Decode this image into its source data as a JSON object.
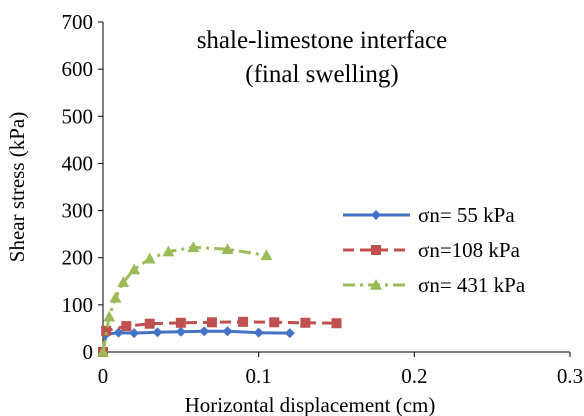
{
  "chart_data": {
    "type": "scatter",
    "title_lines": [
      "shale-limestone interface",
      "(final swelling)"
    ],
    "xlabel": "Horizontal displacement (cm)",
    "ylabel": "Shear stress (kPa)",
    "xlim": [
      0,
      0.3
    ],
    "ylim": [
      0,
      700
    ],
    "x_ticks": [
      "0",
      "0.1",
      "0.2",
      "0.3"
    ],
    "y_ticks": [
      "0",
      "100",
      "200",
      "300",
      "400",
      "500",
      "600",
      "700"
    ],
    "grid": false,
    "legend_position": "right",
    "series": [
      {
        "name": "σn= 55 kPa",
        "color": "#4472C4",
        "marker": "diamond",
        "line_style": "solid",
        "x": [
          0,
          0.002,
          0.01,
          0.02,
          0.035,
          0.05,
          0.065,
          0.08,
          0.1,
          0.12
        ],
        "y": [
          0,
          38,
          41,
          40,
          42,
          43,
          44,
          44,
          41,
          40
        ]
      },
      {
        "name": "σn=108 kPa",
        "color": "#C0504D",
        "marker": "square",
        "line_style": "dashed",
        "x": [
          0,
          0.002,
          0.015,
          0.03,
          0.05,
          0.07,
          0.09,
          0.11,
          0.13,
          0.15
        ],
        "y": [
          0,
          45,
          55,
          60,
          62,
          63,
          64,
          63,
          62,
          61
        ]
      },
      {
        "name": "σn= 431 kPa",
        "color": "#9BBB59",
        "marker": "triangle",
        "line_style": "dashdot",
        "x": [
          0,
          0.004,
          0.008,
          0.013,
          0.02,
          0.03,
          0.042,
          0.058,
          0.08,
          0.105
        ],
        "y": [
          0,
          75,
          115,
          148,
          175,
          198,
          213,
          222,
          218,
          205
        ]
      }
    ]
  }
}
